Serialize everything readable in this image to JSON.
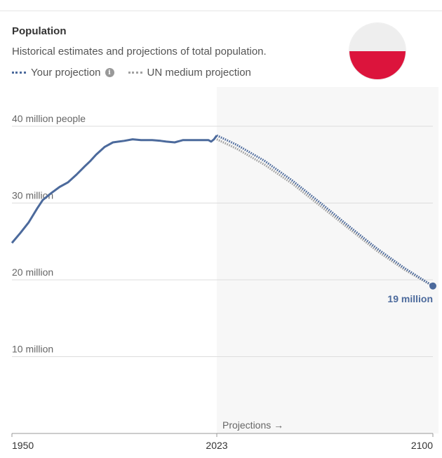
{
  "header": {
    "title": "Population",
    "subtitle": "Historical estimates and projections of total population.",
    "info_glyph": "i"
  },
  "legend": [
    {
      "label": "Your projection",
      "color": "#4c6a9c",
      "has_info": true
    },
    {
      "label": "UN medium projection",
      "color": "#a1a1a1",
      "has_info": false
    }
  ],
  "flag": {
    "icon": "poland-flag-icon",
    "top_color": "#eeeeee",
    "bottom_color": "#dc143c"
  },
  "colors": {
    "series": "#4c6a9c",
    "un_series": "#a1a1a1",
    "grid": "#dddddd",
    "projection_shade": "#f7f7f7"
  },
  "chart_data": {
    "type": "line",
    "title": "Population",
    "subtitle": "Historical estimates and projections of total population.",
    "xlabel": "",
    "ylabel": "",
    "xlim": [
      1950,
      2100
    ],
    "ylim": [
      0,
      40000000
    ],
    "y_ticks": [
      {
        "value": 40000000,
        "label": "40 million people"
      },
      {
        "value": 30000000,
        "label": "30 million"
      },
      {
        "value": 20000000,
        "label": "20 million"
      },
      {
        "value": 10000000,
        "label": "10 million"
      }
    ],
    "x_ticks": [
      {
        "value": 1950,
        "label": "1950"
      },
      {
        "value": 2023,
        "label": "2023"
      },
      {
        "value": 2100,
        "label": "2100"
      }
    ],
    "projection_start": 2023,
    "projection_label": "Projections →",
    "grid": true,
    "legend_position": "top-left",
    "series": [
      {
        "name": "Your projection",
        "style": "solid",
        "x": [
          1950,
          1953,
          1956,
          1959,
          1961,
          1964,
          1967,
          1970,
          1973,
          1976,
          1978,
          1980,
          1983,
          1986,
          1988,
          1990,
          1993,
          1996,
          2000,
          2003,
          2005,
          2008,
          2011,
          2014,
          2017,
          2020,
          2021,
          2022,
          2023
        ],
        "y": [
          24800000,
          26100000,
          27500000,
          29300000,
          30400000,
          31300000,
          32100000,
          32700000,
          33700000,
          34800000,
          35500000,
          36300000,
          37300000,
          37900000,
          38000000,
          38100000,
          38300000,
          38200000,
          38200000,
          38100000,
          38000000,
          37900000,
          38200000,
          38200000,
          38200000,
          38200000,
          38000000,
          38300000,
          38800000
        ]
      },
      {
        "name": "Your projection",
        "style": "dotted",
        "x": [
          2023,
          2030,
          2040,
          2050,
          2060,
          2070,
          2080,
          2090,
          2100
        ],
        "y": [
          38800000,
          37600000,
          35500000,
          32900000,
          30000000,
          27000000,
          24100000,
          21500000,
          19200000
        ]
      },
      {
        "name": "UN medium projection",
        "style": "dotted",
        "x": [
          2023,
          2030,
          2040,
          2050,
          2060,
          2070,
          2080,
          2090,
          2100
        ],
        "y": [
          38300000,
          37100000,
          35000000,
          32500000,
          29600000,
          26700000,
          23800000,
          21300000,
          19200000
        ]
      }
    ],
    "end_label": "19 million"
  }
}
